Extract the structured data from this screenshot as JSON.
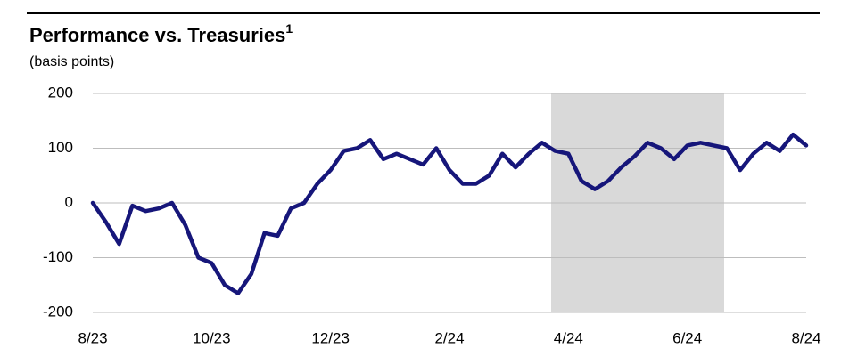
{
  "chart_data": {
    "type": "line",
    "title": "Performance vs. Treasuries",
    "title_footnote": "1",
    "subtitle": "(basis points)",
    "categories": [
      "8/23",
      null,
      null,
      null,
      null,
      null,
      null,
      null,
      null,
      "10/23",
      null,
      null,
      null,
      null,
      null,
      null,
      null,
      null,
      "12/23",
      null,
      null,
      null,
      null,
      null,
      null,
      null,
      null,
      "2/24",
      null,
      null,
      null,
      null,
      null,
      null,
      null,
      null,
      "4/24",
      null,
      null,
      null,
      null,
      null,
      null,
      null,
      null,
      "6/24",
      null,
      null,
      null,
      null,
      null,
      null,
      null,
      null,
      "8/24"
    ],
    "series": [
      {
        "name": "Performance vs. Treasuries",
        "color": "#16167a",
        "values": [
          0,
          -35,
          -75,
          -5,
          -15,
          -10,
          0,
          -40,
          -100,
          -110,
          -150,
          -165,
          -130,
          -55,
          -60,
          -10,
          0,
          35,
          60,
          95,
          100,
          115,
          80,
          90,
          80,
          70,
          100,
          60,
          35,
          35,
          50,
          90,
          65,
          90,
          110,
          95,
          90,
          40,
          25,
          40,
          65,
          85,
          110,
          100,
          80,
          105,
          110,
          105,
          100,
          60,
          90,
          110,
          95,
          125,
          105
        ]
      }
    ],
    "ylim": [
      -200,
      200
    ],
    "yticks": [
      -200,
      -100,
      0,
      100,
      200
    ],
    "grid": true
  }
}
